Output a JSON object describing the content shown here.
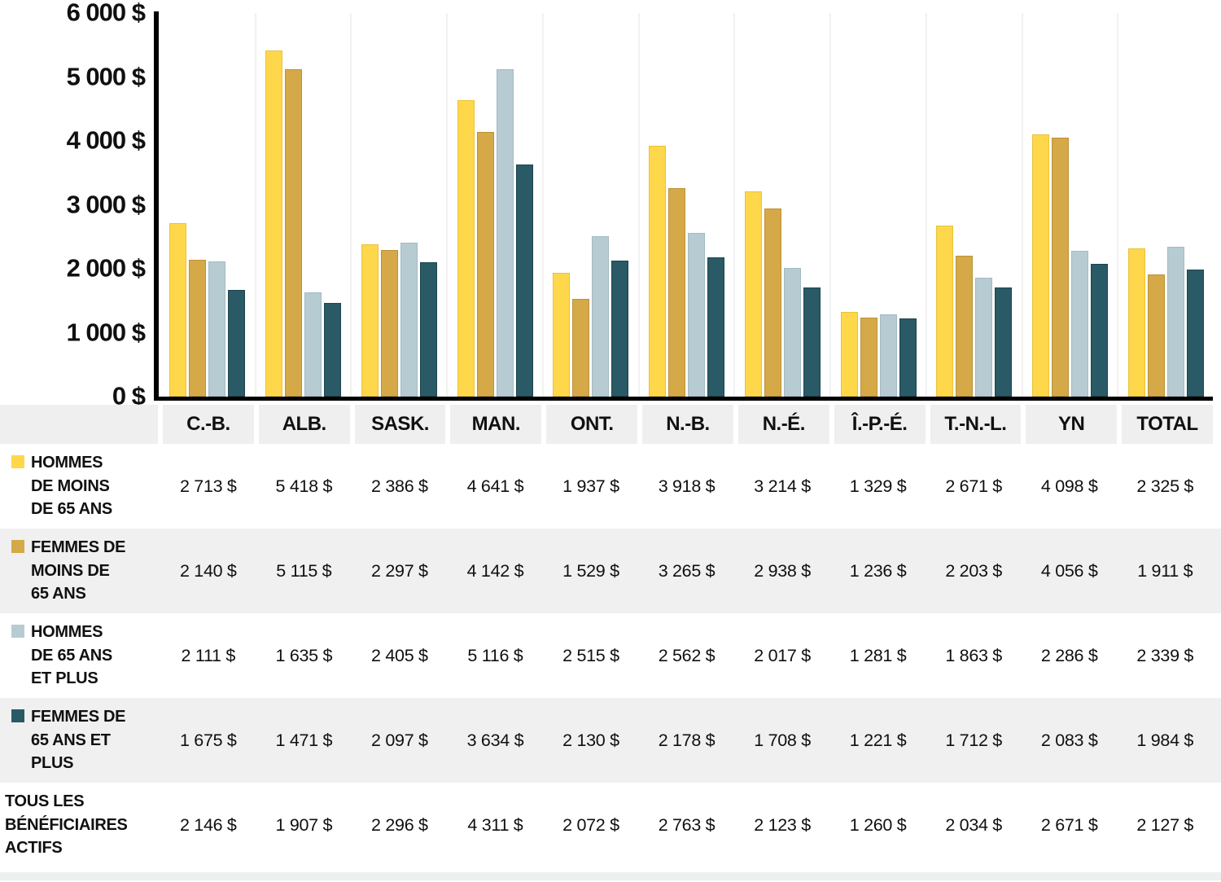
{
  "chart_data": {
    "type": "bar",
    "title": "",
    "xlabel": "",
    "ylabel": "",
    "ylim": [
      0,
      6000
    ],
    "y_ticks": [
      "6 000 $",
      "5 000 $",
      "4 000 $",
      "3 000 $",
      "2 000 $",
      "1 000 $",
      "0 $"
    ],
    "grid": "vertical separators between category groups only",
    "legend_position": "table row labels below chart",
    "categories": [
      "C.-B.",
      "ALB.",
      "SASK.",
      "MAN.",
      "ONT.",
      "N.-B.",
      "N.-É.",
      "Î.-P.-É.",
      "T.-N.-L.",
      "YN",
      "TOTAL"
    ],
    "series": [
      {
        "key": "hommes-moins-65",
        "name": "HOMMES DE MOINS DE 65 ANS",
        "color": "#FED74A",
        "stroke": "#E9C23B",
        "values": [
          2713,
          5418,
          2386,
          4641,
          1937,
          3918,
          3214,
          1329,
          2671,
          4098,
          2325
        ]
      },
      {
        "key": "femmes-moins-65",
        "name": "FEMMES DE MOINS DE 65 ANS",
        "color": "#D5A947",
        "stroke": "#BC9238",
        "values": [
          2140,
          5115,
          2297,
          4142,
          1529,
          3265,
          2938,
          1236,
          2203,
          4056,
          1911
        ]
      },
      {
        "key": "hommes-65-plus",
        "name": "HOMMES DE 65 ANS ET PLUS",
        "color": "#B7CBD3",
        "stroke": "#A2BAC4",
        "values": [
          2111,
          1635,
          2405,
          5116,
          2515,
          2562,
          2017,
          1281,
          1863,
          2286,
          2339
        ]
      },
      {
        "key": "femmes-65-plus",
        "name": "FEMMES DE 65 ANS ET PLUS",
        "color": "#2A5A66",
        "stroke": "#1B4450",
        "values": [
          1675,
          1471,
          2097,
          3634,
          2130,
          2178,
          1708,
          1221,
          1712,
          2083,
          1984
        ]
      }
    ]
  },
  "table": {
    "columns": [
      "C.-B.",
      "ALB.",
      "SASK.",
      "MAN.",
      "ONT.",
      "N.-B.",
      "N.-É.",
      "Î.-P.-É.",
      "T.-N.-L.",
      "YN",
      "TOTAL"
    ],
    "rows": [
      {
        "key": "hommes-moins-65",
        "label": "HOMMES\nDE MOINS\nDE 65 ANS",
        "swatch": "#FED74A",
        "values": [
          "2 713 $",
          "5 418 $",
          "2 386 $",
          "4 641 $",
          "1 937 $",
          "3 918 $",
          "3 214 $",
          "1 329 $",
          "2 671 $",
          "4 098 $",
          "2 325 $"
        ]
      },
      {
        "key": "femmes-moins-65",
        "label": "FEMMES DE\nMOINS DE\n65 ANS",
        "swatch": "#D5A947",
        "values": [
          "2 140 $",
          "5 115 $",
          "2 297 $",
          "4 142 $",
          "1 529 $",
          "3 265 $",
          "2 938 $",
          "1 236 $",
          "2 203 $",
          "4 056 $",
          "1 911 $"
        ]
      },
      {
        "key": "hommes-65-plus",
        "label": "HOMMES\nDE 65 ANS\nET PLUS",
        "swatch": "#B7CBD3",
        "values": [
          "2 111 $",
          "1 635 $",
          "2 405 $",
          "5 116 $",
          "2 515 $",
          "2 562 $",
          "2 017 $",
          "1 281 $",
          "1 863 $",
          "2 286 $",
          "2 339 $"
        ]
      },
      {
        "key": "femmes-65-plus",
        "label": "FEMMES DE\n65 ANS ET\nPLUS",
        "swatch": "#2A5A66",
        "values": [
          "1 675 $",
          "1 471 $",
          "2 097 $",
          "3 634 $",
          "2 130 $",
          "2 178 $",
          "1 708 $",
          "1 221 $",
          "1 712 $",
          "2 083 $",
          "1 984 $"
        ]
      },
      {
        "key": "tous-beneficiaires-actifs",
        "label": "TOUS LES\nBÉNÉFICIAIRES\nACTIFS",
        "swatch": null,
        "values": [
          "2 146 $",
          "1 907 $",
          "2 296 $",
          "4 311 $",
          "2 072 $",
          "2 763 $",
          "2 123 $",
          "1 260 $",
          "2 034 $",
          "2 671 $",
          "2 127 $"
        ]
      }
    ]
  },
  "colors": {
    "axis": "#000000",
    "grid_separator": "#F1F1F1",
    "header_cell_bg": "#EFEFEF",
    "alt_row_bg": "#F0F0F0",
    "footer_strip_bg": "#ECF1F0",
    "text": "#101010"
  }
}
